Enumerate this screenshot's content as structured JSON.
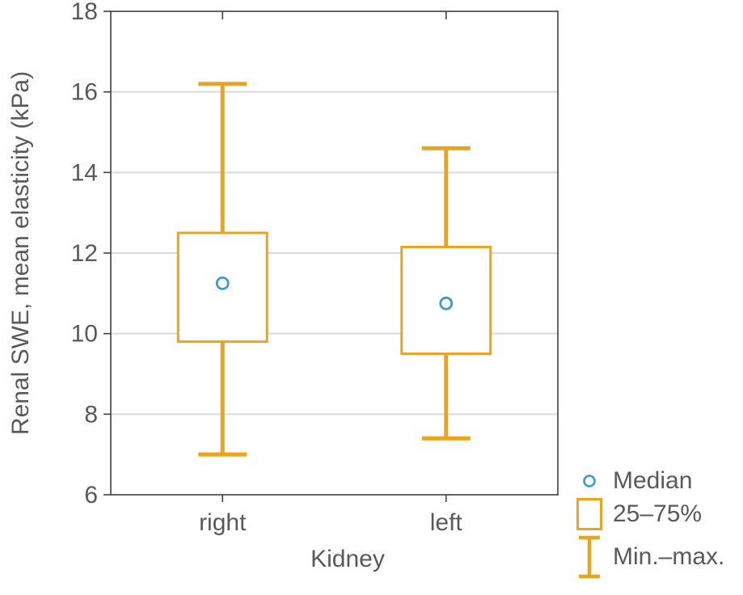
{
  "chart_data": {
    "type": "box",
    "title": "",
    "xlabel": "Kidney",
    "ylabel": "Renal SWE, mean elasticity (kPa)",
    "ylim": [
      6,
      18
    ],
    "yticks": [
      6,
      8,
      10,
      12,
      14,
      16,
      18
    ],
    "grid": true,
    "legend_position": "bottom-right",
    "categories": [
      "right",
      "left"
    ],
    "series": [
      {
        "category": "right",
        "median": 11.25,
        "q1": 9.8,
        "q3": 12.5,
        "min": 7.0,
        "max": 16.2
      },
      {
        "category": "left",
        "median": 10.75,
        "q1": 9.5,
        "q3": 12.15,
        "min": 7.4,
        "max": 14.6
      }
    ],
    "legend": [
      {
        "marker": "median-circle",
        "label": "Median"
      },
      {
        "marker": "iqr-box",
        "label": "25–75%"
      },
      {
        "marker": "minmax-whisker",
        "label": "Min.–max."
      }
    ],
    "colors": {
      "box": "#E8A51D",
      "median_marker": "#3A9EC8",
      "gridline": "#DADADA",
      "frame": "#3F3F3F",
      "text": "#595959",
      "background": "#FFFFFF"
    }
  }
}
